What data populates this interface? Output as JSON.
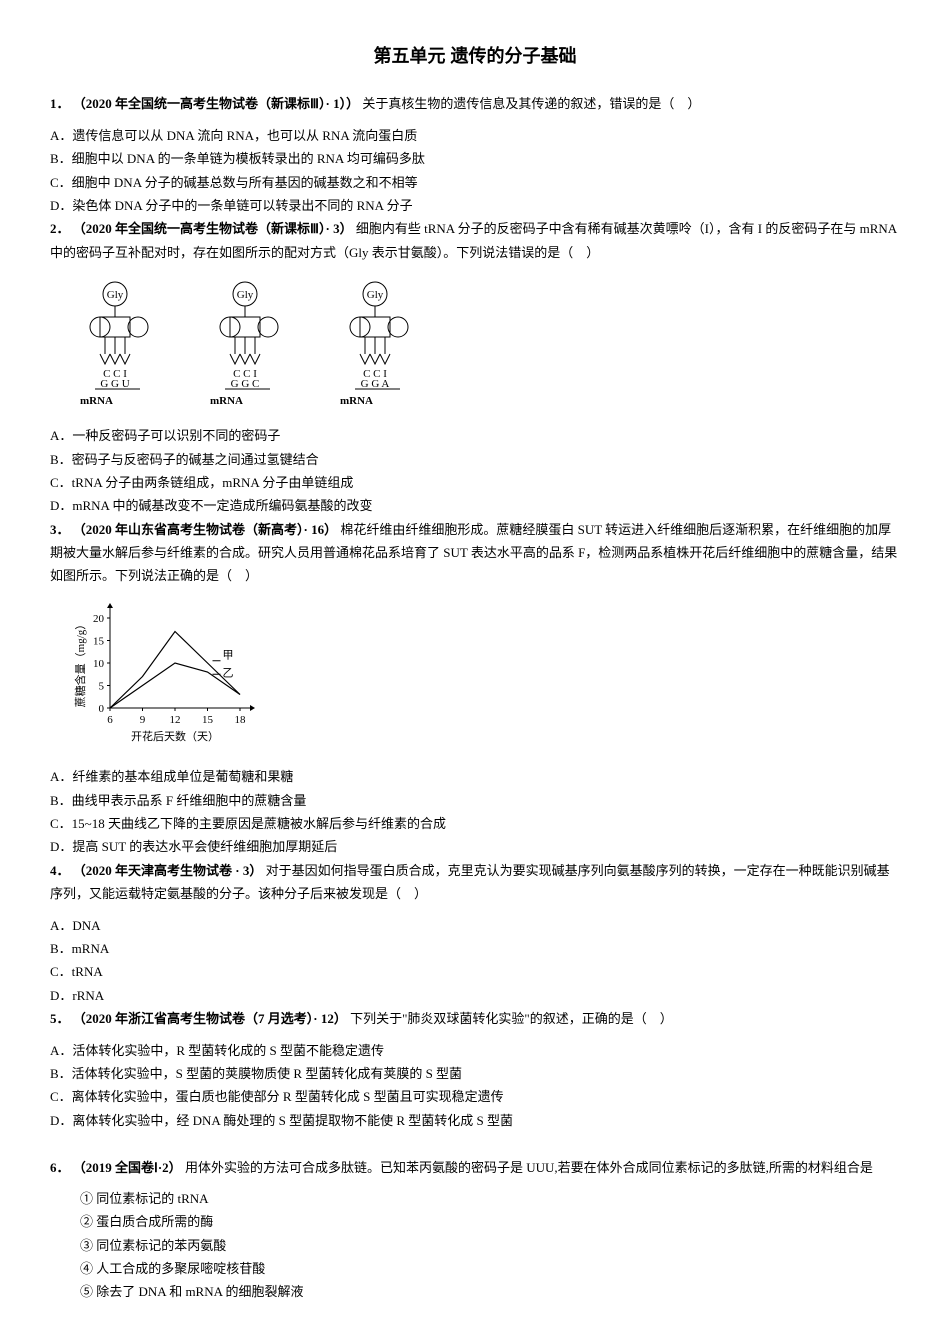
{
  "title": "第五单元 遗传的分子基础",
  "questions": {
    "q1": {
      "num": "1．",
      "source": "（2020 年全国统一高考生物试卷（新课标Ⅲ）· 1））",
      "text": "关于真核生物的遗传信息及其传递的叙述，错误的是（　）",
      "optA": "A．遗传信息可以从 DNA 流向 RNA，也可以从 RNA 流向蛋白质",
      "optB": "B．细胞中以 DNA 的一条单链为模板转录出的 RNA 均可编码多肽",
      "optC": "C．细胞中 DNA 分子的碱基总数与所有基因的碱基数之和不相等",
      "optD": "D．染色体 DNA 分子中的一条单链可以转录出不同的 RNA 分子"
    },
    "q2": {
      "num": "2．",
      "source": "（2020 年全国统一高考生物试卷（新课标Ⅲ）· 3）",
      "text": "细胞内有些 tRNA 分子的反密码子中含有稀有碱基次黄嘌呤（I），含有 I 的反密码子在与 mRNA 中的密码子互补配对时，存在如图所示的配对方式（Gly 表示甘氨酸）。下列说法错误的是（　）",
      "optA": "A．一种反密码子可以识别不同的密码子",
      "optB": "B．密码子与反密码子的碱基之间通过氢键结合",
      "optC": "C．tRNA 分子由两条链组成，mRNA 分子由单链组成",
      "optD": "D．mRNA 中的碱基改变不一定造成所编码氨基酸的改变"
    },
    "q3": {
      "num": "3．",
      "source": "（2020 年山东省高考生物试卷（新高考）· 16）",
      "text": "棉花纤维由纤维细胞形成。蔗糖经膜蛋白 SUT 转运进入纤维细胞后逐渐积累，在纤维细胞的加厚期被大量水解后参与纤维素的合成。研究人员用普通棉花品系培育了 SUT 表达水平高的品系 F，检测两品系植株开花后纤维细胞中的蔗糖含量，结果如图所示。下列说法正确的是（　）",
      "optA": "A．纤维素的基本组成单位是葡萄糖和果糖",
      "optB": "B．曲线甲表示品系 F 纤维细胞中的蔗糖含量",
      "optC": "C．15~18 天曲线乙下降的主要原因是蔗糖被水解后参与纤维素的合成",
      "optD": "D．提高 SUT 的表达水平会使纤维细胞加厚期延后"
    },
    "q4": {
      "num": "4．",
      "source": "（2020 年天津高考生物试卷 · 3）",
      "text": "对于基因如何指导蛋白质合成，克里克认为要实现碱基序列向氨基酸序列的转换，一定存在一种既能识别碱基序列，又能运载特定氨基酸的分子。该种分子后来被发现是（　）",
      "optA": "A．DNA",
      "optB": "B．mRNA",
      "optC": "C．tRNA",
      "optD": "D．rRNA"
    },
    "q5": {
      "num": "5．",
      "source": "（2020 年浙江省高考生物试卷（7 月选考）· 12）",
      "text": "下列关于\"肺炎双球菌转化实验\"的叙述，正确的是（　）",
      "optA": "A．活体转化实验中，R 型菌转化成的 S 型菌不能稳定遗传",
      "optB": "B．活体转化实验中，S 型菌的荚膜物质使 R 型菌转化成有荚膜的 S 型菌",
      "optC": "C．离体转化实验中，蛋白质也能使部分 R 型菌转化成 S 型菌且可实现稳定遗传",
      "optD": "D．离体转化实验中，经 DNA 酶处理的 S 型菌提取物不能使 R 型菌转化成 S 型菌"
    },
    "q6": {
      "num": "6．",
      "source": "（2019 全国卷Ⅰ·2）",
      "text": "用体外实验的方法可合成多肽链。已知苯丙氨酸的密码子是 UUU,若要在体外合成同位素标记的多肽链,所需的材料组合是",
      "sub1": "① 同位素标记的 tRNA",
      "sub2": "② 蛋白质合成所需的酶",
      "sub3": "③ 同位素标记的苯丙氨酸",
      "sub4": "④ 人工合成的多聚尿嘧啶核苷酸",
      "sub5": "⑤ 除去了 DNA 和 mRNA 的细胞裂解液"
    }
  },
  "diagrams": {
    "trna": {
      "gly": "Gly",
      "anticodon": "C C I",
      "codon1": "G G U",
      "codon2": "G G C",
      "codon3": "G G A",
      "mrna": "mRNA"
    },
    "chart": {
      "ylabel": "蔗糖含量（mg/g）",
      "xlabel": "开花后天数（天）",
      "yticks": [
        0,
        5,
        10,
        15,
        20
      ],
      "xticks": [
        6,
        9,
        12,
        15,
        18
      ],
      "line1_label": "甲",
      "line2_label": "乙",
      "line1_points": [
        [
          6,
          0
        ],
        [
          9,
          7
        ],
        [
          12,
          17
        ],
        [
          15,
          10
        ],
        [
          18,
          3
        ]
      ],
      "line2_points": [
        [
          6,
          0
        ],
        [
          9,
          5
        ],
        [
          12,
          10
        ],
        [
          15,
          8
        ],
        [
          18,
          3
        ]
      ],
      "stroke": "#000",
      "fontsize": 11
    }
  }
}
